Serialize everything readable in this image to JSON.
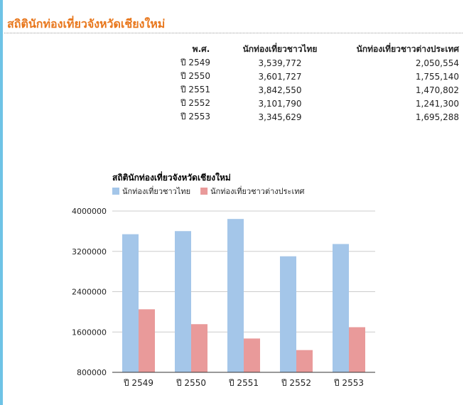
{
  "page": {
    "title": "สถิตินักท่องเที่ยวจังหวัดเชียงใหม่"
  },
  "table": {
    "headers": [
      "พ.ศ.",
      "นักท่องเที่ยวชาวไทย",
      "นักท่องเที่ยวชาวต่างประเทศ"
    ],
    "rows": [
      [
        "ปี 2549",
        "3,539,772",
        "2,050,554"
      ],
      [
        "ปี 2550",
        "3,601,727",
        "1,755,140"
      ],
      [
        "ปี 2551",
        "3,842,550",
        "1,470,802"
      ],
      [
        "ปี 2552",
        "3,101,790",
        "1,241,300"
      ],
      [
        "ปี 2553",
        "3,345,629",
        "1,695,288"
      ]
    ]
  },
  "colors": {
    "title": "#e8761b",
    "thai": "#a4c6e9",
    "foreign": "#e99a9a",
    "grid": "#cccccc",
    "side_bar": "#6ec3e6"
  },
  "chart_data": {
    "type": "bar",
    "title": "สถิตินักท่องเที่ยวจังหวัดเชียงใหม่",
    "categories": [
      "ปี 2549",
      "ปี 2550",
      "ปี 2551",
      "ปี 2552",
      "ปี 2553"
    ],
    "series": [
      {
        "name": "นักท่องเที่ยวชาวไทย",
        "values": [
          3539772,
          3601727,
          3842550,
          3101790,
          3345629
        ]
      },
      {
        "name": "นักท่องเที่ยวชาวต่างประเทศ",
        "values": [
          2050554,
          1755140,
          1470802,
          1241300,
          1695288
        ]
      }
    ],
    "ylim": [
      800000,
      4000000
    ],
    "yticks": [
      800000,
      1600000,
      2400000,
      3200000,
      4000000
    ],
    "ytick_labels": [
      "800000",
      "1600000",
      "2400000",
      "3200000",
      "4000000"
    ],
    "legend_position": "top-left",
    "grid": true
  }
}
